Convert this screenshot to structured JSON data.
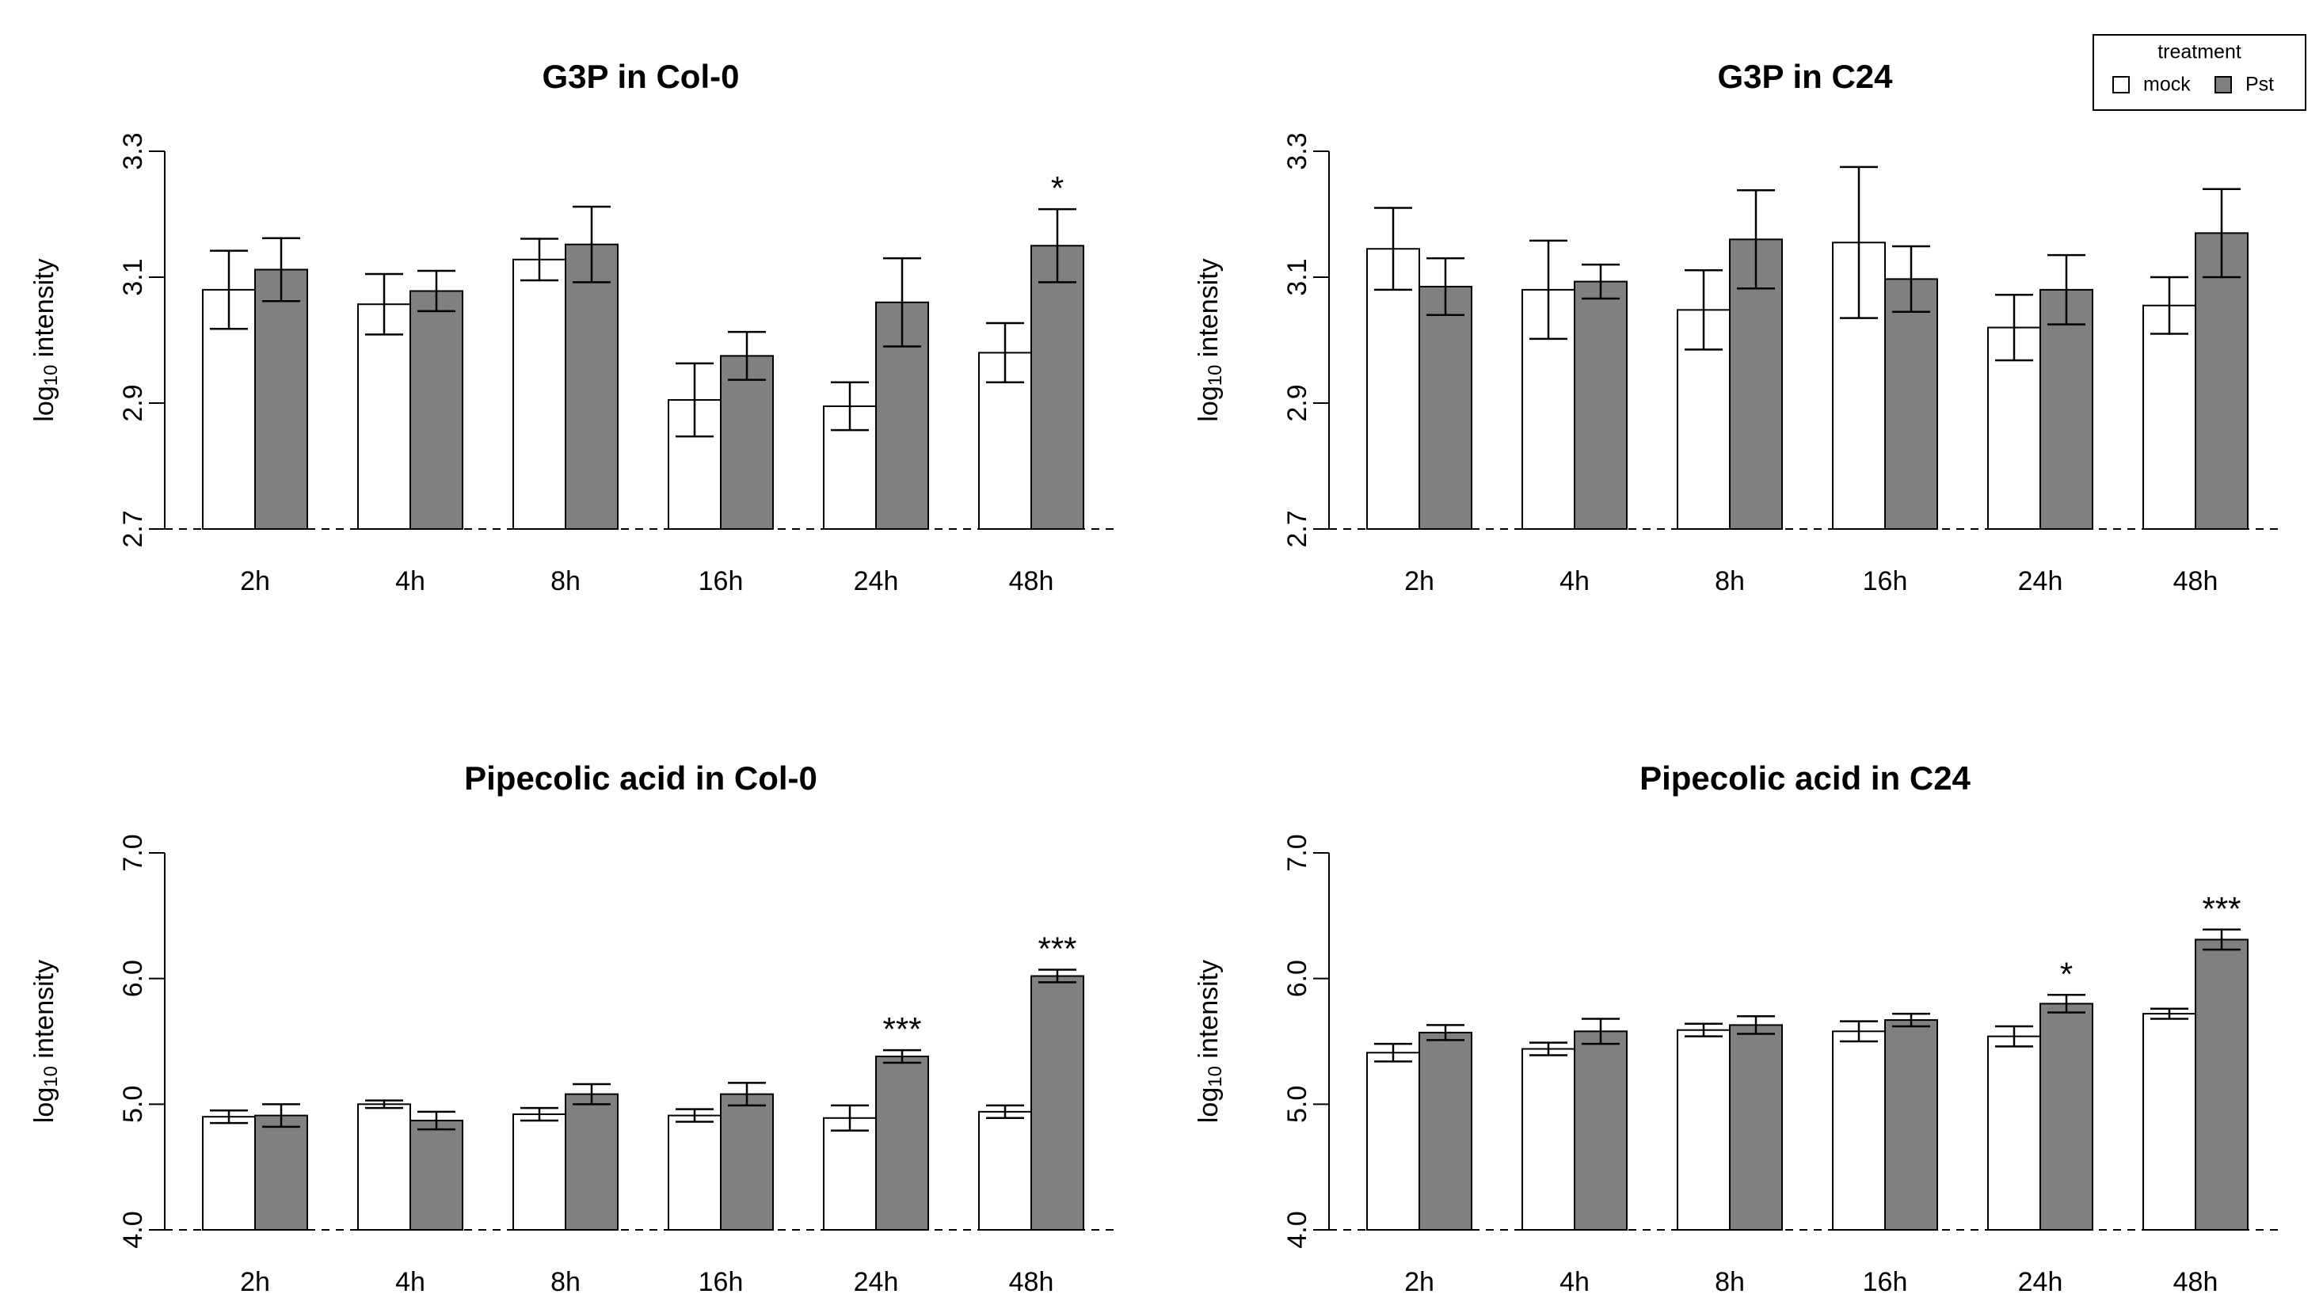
{
  "chart_data": [
    {
      "type": "bar",
      "title": "G3P in Col-0",
      "ylabel_prefix": "log",
      "ylabel_sub": "10",
      "ylabel_suffix": " intensity",
      "categories": [
        "2h",
        "4h",
        "8h",
        "16h",
        "24h",
        "48h"
      ],
      "ylim": [
        2.7,
        3.3
      ],
      "yticks": [
        "2.7",
        "2.9",
        "3.1",
        "3.3"
      ],
      "series": [
        {
          "name": "mock",
          "color": "#ffffff",
          "values": [
            3.08,
            3.057,
            3.128,
            2.905,
            2.895,
            2.98
          ],
          "err": [
            0.062,
            0.048,
            0.033,
            0.058,
            0.038,
            0.047
          ]
        },
        {
          "name": "Pst",
          "color": "#808080",
          "values": [
            3.112,
            3.078,
            3.152,
            2.975,
            3.06,
            3.15
          ],
          "err": [
            0.05,
            0.032,
            0.06,
            0.038,
            0.07,
            0.058
          ]
        }
      ],
      "significance": [
        {
          "category": "48h",
          "label": "*"
        }
      ]
    },
    {
      "type": "bar",
      "title": "G3P in C24",
      "ylabel_prefix": "log",
      "ylabel_sub": "10",
      "ylabel_suffix": " intensity",
      "categories": [
        "2h",
        "4h",
        "8h",
        "16h",
        "24h",
        "48h"
      ],
      "ylim": [
        2.7,
        3.3
      ],
      "yticks": [
        "2.7",
        "2.9",
        "3.1",
        "3.3"
      ],
      "series": [
        {
          "name": "mock",
          "color": "#ffffff",
          "values": [
            3.145,
            3.08,
            3.048,
            3.155,
            3.02,
            3.055
          ],
          "err": [
            0.065,
            0.078,
            0.063,
            0.12,
            0.052,
            0.045
          ]
        },
        {
          "name": "Pst",
          "color": "#808080",
          "values": [
            3.085,
            3.093,
            3.16,
            3.097,
            3.08,
            3.17
          ],
          "err": [
            0.045,
            0.027,
            0.078,
            0.052,
            0.055,
            0.07
          ]
        }
      ],
      "significance": []
    },
    {
      "type": "bar",
      "title": "Pipecolic acid in Col-0",
      "ylabel_prefix": "log",
      "ylabel_sub": "10",
      "ylabel_suffix": " intensity",
      "categories": [
        "2h",
        "4h",
        "8h",
        "16h",
        "24h",
        "48h"
      ],
      "ylim": [
        4.0,
        7.0
      ],
      "yticks": [
        "4.0",
        "5.0",
        "6.0",
        "7.0"
      ],
      "series": [
        {
          "name": "mock",
          "color": "#ffffff",
          "values": [
            4.9,
            5.0,
            4.92,
            4.91,
            4.89,
            4.94
          ],
          "err": [
            0.05,
            0.03,
            0.05,
            0.05,
            0.1,
            0.05
          ]
        },
        {
          "name": "Pst",
          "color": "#808080",
          "values": [
            4.91,
            4.87,
            5.08,
            5.08,
            5.38,
            6.02
          ],
          "err": [
            0.09,
            0.07,
            0.08,
            0.09,
            0.05,
            0.05
          ]
        }
      ],
      "significance": [
        {
          "category": "24h",
          "label": "***"
        },
        {
          "category": "48h",
          "label": "***"
        }
      ]
    },
    {
      "type": "bar",
      "title": "Pipecolic acid in C24",
      "ylabel_prefix": "log",
      "ylabel_sub": "10",
      "ylabel_suffix": " intensity",
      "categories": [
        "2h",
        "4h",
        "8h",
        "16h",
        "24h",
        "48h"
      ],
      "ylim": [
        4.0,
        7.0
      ],
      "yticks": [
        "4.0",
        "5.0",
        "6.0",
        "7.0"
      ],
      "series": [
        {
          "name": "mock",
          "color": "#ffffff",
          "values": [
            5.41,
            5.44,
            5.59,
            5.58,
            5.54,
            5.72
          ],
          "err": [
            0.07,
            0.05,
            0.05,
            0.08,
            0.08,
            0.04
          ]
        },
        {
          "name": "Pst",
          "color": "#808080",
          "values": [
            5.57,
            5.58,
            5.63,
            5.67,
            5.8,
            6.31
          ],
          "err": [
            0.06,
            0.1,
            0.07,
            0.05,
            0.07,
            0.08
          ]
        }
      ],
      "significance": [
        {
          "category": "24h",
          "label": "*"
        },
        {
          "category": "48h",
          "label": "***"
        }
      ]
    }
  ],
  "legend": {
    "title": "treatment",
    "items": [
      {
        "label": "mock",
        "color": "#ffffff"
      },
      {
        "label": "Pst",
        "color": "#808080"
      }
    ]
  }
}
